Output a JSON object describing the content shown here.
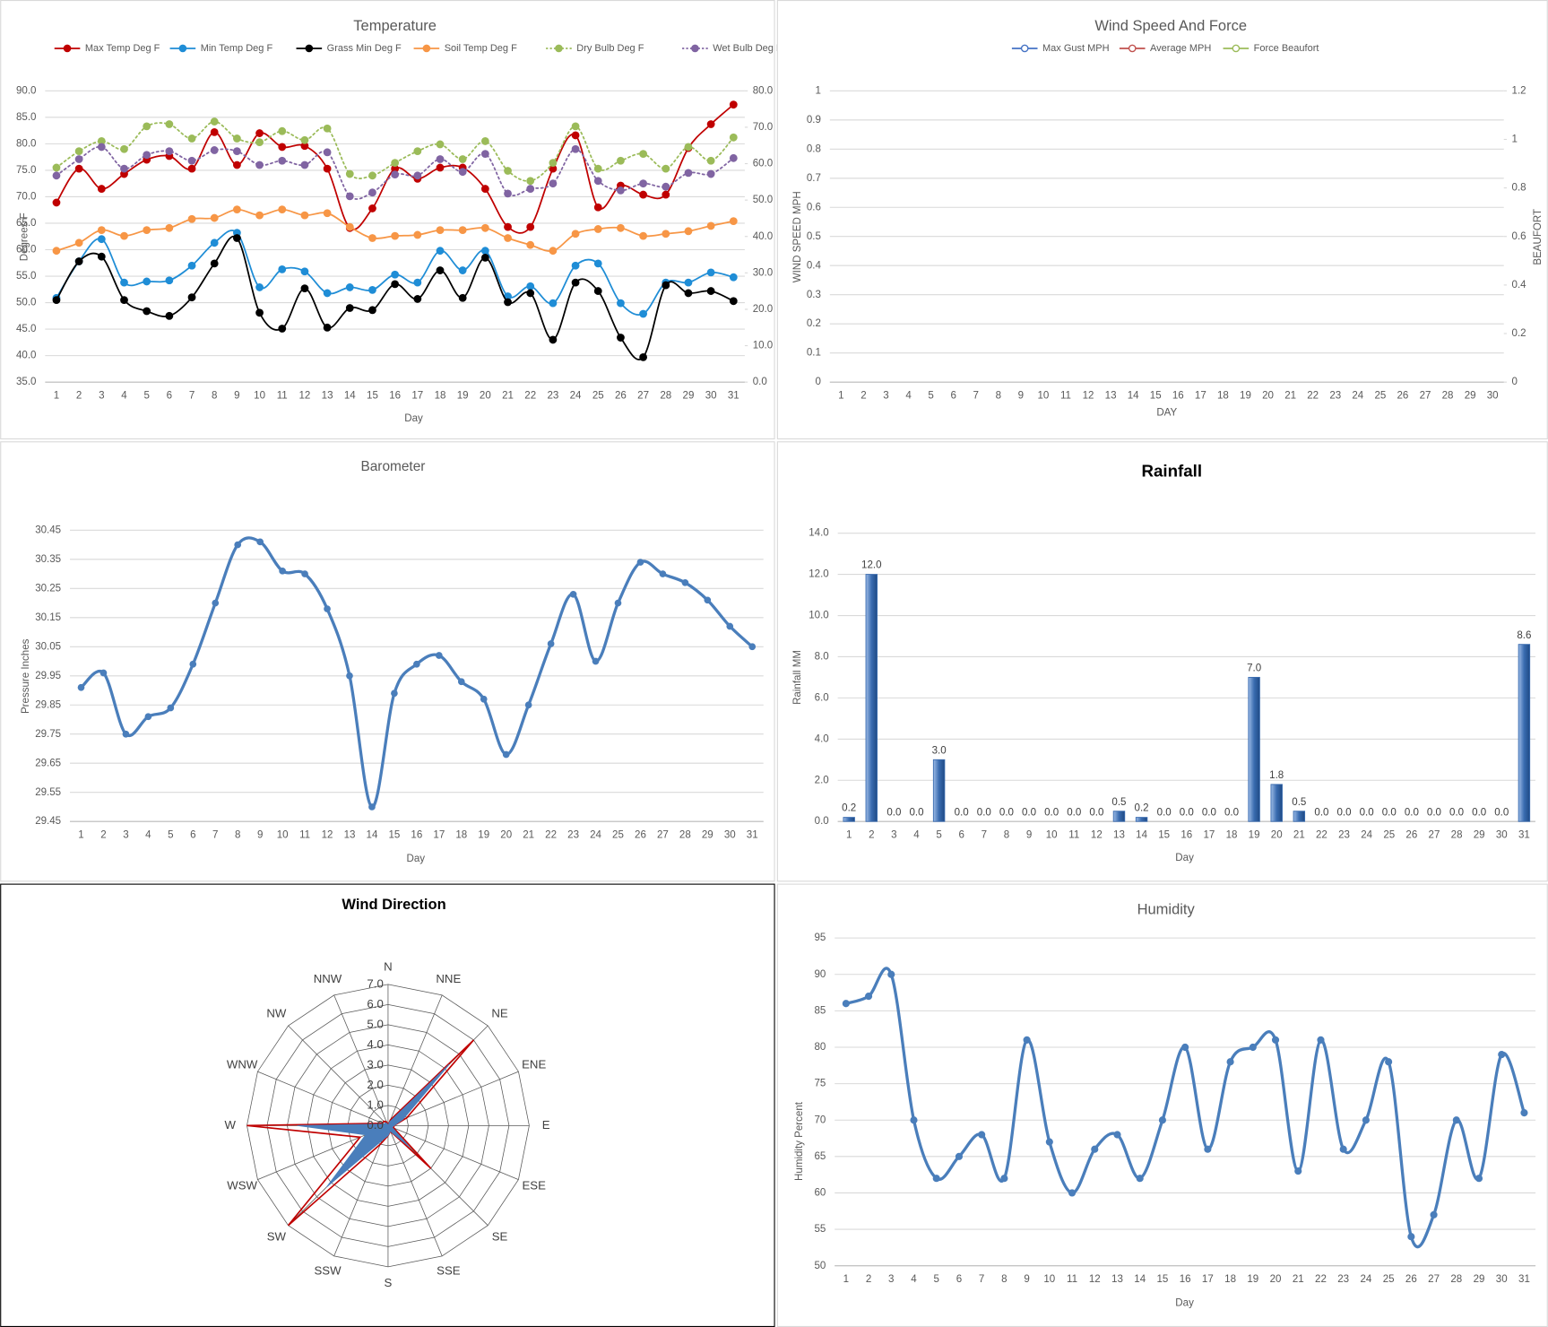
{
  "chart_data": [
    {
      "type": "line",
      "title": "Temperature",
      "xlabel": "Day",
      "ylabel": "Degrees F",
      "grid": true,
      "legend": "top",
      "marker_style": "filled",
      "categories": [
        1,
        2,
        3,
        4,
        5,
        6,
        7,
        8,
        9,
        10,
        11,
        12,
        13,
        14,
        15,
        16,
        17,
        18,
        19,
        20,
        21,
        22,
        23,
        24,
        25,
        26,
        27,
        28,
        29,
        30,
        31
      ],
      "ylim": [
        35,
        90
      ],
      "yticks": [
        {
          "value": 35,
          "label": "35.0"
        },
        {
          "value": 40,
          "label": "40.0"
        },
        {
          "value": 45,
          "label": "45.0"
        },
        {
          "value": 50,
          "label": "50.0"
        },
        {
          "value": 55,
          "label": "55.0"
        },
        {
          "value": 60,
          "label": "60.0"
        },
        {
          "value": 65,
          "label": "65.0"
        },
        {
          "value": 70,
          "label": "70.0"
        },
        {
          "value": 75,
          "label": "75.0"
        },
        {
          "value": 80,
          "label": "80.0"
        },
        {
          "value": 85,
          "label": "85.0"
        },
        {
          "value": 90,
          "label": "90.0"
        }
      ],
      "y2lim": [
        0,
        80
      ],
      "y2ticks": [
        {
          "value": 0,
          "label": "0.0"
        },
        {
          "value": 10,
          "label": "10.0"
        },
        {
          "value": 20,
          "label": "20.0"
        },
        {
          "value": 30,
          "label": "30.0"
        },
        {
          "value": 40,
          "label": "40.0"
        },
        {
          "value": 50,
          "label": "50.0"
        },
        {
          "value": 60,
          "label": "60.0"
        },
        {
          "value": 70,
          "label": "70.0"
        },
        {
          "value": 80,
          "label": "80.0"
        }
      ],
      "series": [
        {
          "name": "Max Temp Deg F",
          "color": "#c00000",
          "style": "solid",
          "values": [
            68.9,
            75.3,
            71.5,
            74.3,
            77,
            77.7,
            75.3,
            82.2,
            76,
            82,
            79.4,
            79.6,
            75.3,
            64.1,
            67.8,
            75.3,
            73.4,
            75.5,
            75.5,
            71.5,
            64.3,
            64.3,
            75.3,
            81.6,
            68,
            72.1,
            70.4,
            70.4,
            79.2,
            83.7,
            87.4
          ]
        },
        {
          "name": "Min Temp Deg F",
          "color": "#1f8dd6",
          "style": "solid",
          "values": [
            50.9,
            57.8,
            62,
            53.8,
            54,
            54.2,
            57,
            61.3,
            63.2,
            52.9,
            56.3,
            55.9,
            51.8,
            52.9,
            52.4,
            55.3,
            53.8,
            59.8,
            56.1,
            59.8,
            51.2,
            53.1,
            49.9,
            57,
            57.4,
            49.9,
            47.9,
            53.8,
            53.8,
            55.7,
            54.8
          ]
        },
        {
          "name": "Grass Min Deg F",
          "color": "#000000",
          "style": "solid",
          "values": [
            50.5,
            57.8,
            58.7,
            50.5,
            48.4,
            47.5,
            51,
            57.4,
            62.2,
            48.1,
            45.1,
            52.7,
            45.3,
            49,
            48.6,
            53.5,
            50.7,
            56.1,
            50.9,
            58.5,
            50.1,
            51.8,
            43,
            53.8,
            52.2,
            43.4,
            39.7,
            53.3,
            51.8,
            52.2,
            50.3
          ]
        },
        {
          "name": "Soil Temp Deg F",
          "color": "#f79646",
          "style": "solid",
          "values": [
            59.8,
            61.3,
            63.7,
            62.6,
            63.7,
            64.1,
            65.8,
            66,
            67.6,
            66.5,
            67.6,
            66.5,
            66.9,
            64.3,
            62.2,
            62.6,
            62.8,
            63.7,
            63.7,
            64.1,
            62.2,
            60.9,
            59.8,
            63,
            63.9,
            64.1,
            62.6,
            63,
            63.5,
            64.5,
            65.4
          ]
        },
        {
          "name": "Dry Bulb Deg F",
          "color": "#9bbb59",
          "style": "dotted",
          "values": [
            75.5,
            78.6,
            80.5,
            79,
            83.3,
            83.7,
            81,
            84.2,
            81,
            80.3,
            82.4,
            80.7,
            82.9,
            74.3,
            74,
            76.4,
            78.6,
            79.9,
            77.1,
            80.5,
            74.9,
            73,
            76.4,
            83.3,
            75.3,
            76.8,
            78.1,
            75.3,
            79.4,
            76.8,
            81.2
          ]
        },
        {
          "name": "Wet Bulb Deg F",
          "color": "#8064a2",
          "style": "dotted",
          "values": [
            74,
            77.1,
            79.4,
            75.3,
            77.9,
            78.6,
            76.8,
            78.8,
            78.6,
            76,
            76.8,
            76,
            78.4,
            70.1,
            70.8,
            74.2,
            74,
            77.1,
            74.7,
            78.1,
            70.6,
            71.5,
            72.5,
            79,
            73,
            71.2,
            72.5,
            71.9,
            74.5,
            74.3,
            77.3
          ]
        }
      ]
    },
    {
      "type": "line",
      "title": "Wind Speed And Force",
      "xlabel": "DAY",
      "ylabel": "WIND SPEED MPH",
      "y2label": "BEAUFORT",
      "grid": true,
      "legend": "top",
      "marker_style": "open",
      "categories": [
        1,
        2,
        3,
        4,
        5,
        6,
        7,
        8,
        9,
        10,
        11,
        12,
        13,
        14,
        15,
        16,
        17,
        18,
        19,
        20,
        21,
        22,
        23,
        24,
        25,
        26,
        27,
        28,
        29,
        30
      ],
      "ylim": [
        0,
        1
      ],
      "yticks": [
        0,
        0.1,
        0.2,
        0.3,
        0.4,
        0.5,
        0.6,
        0.7,
        0.8,
        0.9,
        1
      ],
      "y2lim": [
        0,
        1.2
      ],
      "y2ticks": [
        0,
        0.2,
        0.4,
        0.6,
        0.8,
        1,
        1.2
      ],
      "series": [
        {
          "name": "Max Gust MPH",
          "color": "#4472c4",
          "style": "solid"
        },
        {
          "name": "Average MPH",
          "color": "#c0504d",
          "style": "solid"
        },
        {
          "name": "Force Beaufort",
          "color": "#9bbb59",
          "style": "solid",
          "axis": "y2"
        }
      ]
    },
    {
      "type": "line",
      "title": "Barometer",
      "xlabel": "Day",
      "ylabel": "Pressure Inches",
      "grid": true,
      "marker_style": "filled",
      "categories": [
        1,
        2,
        3,
        4,
        5,
        6,
        7,
        8,
        9,
        10,
        11,
        12,
        13,
        14,
        15,
        16,
        17,
        18,
        19,
        20,
        21,
        22,
        23,
        24,
        25,
        26,
        27,
        28,
        29,
        30,
        31
      ],
      "ylim": [
        29.45,
        30.45
      ],
      "yticks": [
        29.45,
        29.55,
        29.65,
        29.75,
        29.85,
        29.95,
        30.05,
        30.15,
        30.25,
        30.35,
        30.45
      ],
      "series": [
        {
          "color": "#4a7ebb",
          "style": "solid",
          "values": [
            29.91,
            29.96,
            29.75,
            29.81,
            29.84,
            29.99,
            30.2,
            30.4,
            30.41,
            30.31,
            30.3,
            30.18,
            29.95,
            29.5,
            29.89,
            29.99,
            30.02,
            29.93,
            29.87,
            29.68,
            29.85,
            30.06,
            30.23,
            30,
            30.2,
            30.34,
            30.3,
            30.27,
            30.21,
            30.12,
            30.05
          ]
        }
      ]
    },
    {
      "type": "bar",
      "title": "Rainfall",
      "xlabel": "Day",
      "ylabel": "Rainfall MM",
      "grid": true,
      "color": "#3a6cb0",
      "categories": [
        1,
        2,
        3,
        4,
        5,
        6,
        7,
        8,
        9,
        10,
        11,
        12,
        13,
        14,
        15,
        16,
        17,
        18,
        19,
        20,
        21,
        22,
        23,
        24,
        25,
        26,
        27,
        28,
        29,
        30,
        31
      ],
      "ylim": [
        0,
        14
      ],
      "yticks": [
        {
          "value": 0,
          "label": "0.0"
        },
        {
          "value": 2,
          "label": "2.0"
        },
        {
          "value": 4,
          "label": "4.0"
        },
        {
          "value": 6,
          "label": "6.0"
        },
        {
          "value": 8,
          "label": "8.0"
        },
        {
          "value": 10,
          "label": "10.0"
        },
        {
          "value": 12,
          "label": "12.0"
        },
        {
          "value": 14,
          "label": "14.0"
        }
      ],
      "values": [
        0.2,
        12,
        0,
        0,
        3,
        0,
        0,
        0,
        0,
        0,
        0,
        0,
        0.5,
        0.2,
        0,
        0,
        0,
        0,
        7,
        1.8,
        0.5,
        0,
        0,
        0,
        0,
        0,
        0,
        0,
        0,
        0,
        8.6
      ],
      "value_labels": [
        "0.2",
        "12.0",
        "0.0",
        "0.0",
        "3.0",
        "0.0",
        "0.0",
        "0.0",
        "0.0",
        "0.0",
        "0.0",
        "0.0",
        "0.5",
        "0.2",
        "0.0",
        "0.0",
        "0.0",
        "0.0",
        "7.0",
        "1.8",
        "0.5",
        "0.0",
        "0.0",
        "0.0",
        "0.0",
        "0.0",
        "0.0",
        "0.0",
        "0.0",
        "0.0",
        "8.6"
      ]
    },
    {
      "type": "radar",
      "title": "Wind Direction",
      "categories": [
        "N",
        "NNE",
        "NE",
        "ENE",
        "E",
        "ESE",
        "SE",
        "SSE",
        "S",
        "SSW",
        "SW",
        "WSW",
        "W",
        "WNW",
        "NW",
        "NNW"
      ],
      "rlim": [
        0,
        7
      ],
      "rticks": [
        {
          "value": 0,
          "label": "0.0"
        },
        {
          "value": 1,
          "label": "1.0"
        },
        {
          "value": 2,
          "label": "2.0"
        },
        {
          "value": 3,
          "label": "3.0"
        },
        {
          "value": 4,
          "label": "4.0"
        },
        {
          "value": 5,
          "label": "5.0"
        },
        {
          "value": 6,
          "label": "6.0"
        },
        {
          "value": 7,
          "label": "7.0"
        }
      ],
      "series": [
        {
          "color": "#c00000",
          "filled": false,
          "values": [
            0,
            0.3,
            6,
            1,
            0.3,
            0.3,
            3,
            0.3,
            0.5,
            1,
            7,
            1.5,
            7,
            0.3,
            0.3,
            0.2
          ]
        },
        {
          "color": "#4a7ebb",
          "filled": true,
          "values": [
            0,
            0.2,
            4.3,
            0.8,
            0.3,
            0.2,
            1.5,
            0.3,
            0.5,
            0.8,
            4.3,
            1.2,
            4.5,
            0.2,
            0.2,
            0.1
          ]
        }
      ]
    },
    {
      "type": "line",
      "title": "Humidity",
      "xlabel": "Day",
      "ylabel": "Humidity Percent",
      "grid": true,
      "marker_style": "filled",
      "categories": [
        1,
        2,
        3,
        4,
        5,
        6,
        7,
        8,
        9,
        10,
        11,
        12,
        13,
        14,
        15,
        16,
        17,
        18,
        19,
        20,
        21,
        22,
        23,
        24,
        25,
        26,
        27,
        28,
        29,
        30,
        31
      ],
      "ylim": [
        50,
        95
      ],
      "yticks": [
        50,
        55,
        60,
        65,
        70,
        75,
        80,
        85,
        90,
        95
      ],
      "series": [
        {
          "color": "#4a7ebb",
          "style": "solid",
          "values": [
            86,
            87,
            90,
            70,
            62,
            65,
            68,
            62,
            81,
            67,
            60,
            66,
            68,
            62,
            70,
            80,
            66,
            78,
            80,
            81,
            63,
            81,
            66,
            70,
            78,
            54,
            57,
            70,
            62,
            79,
            71
          ]
        }
      ]
    }
  ]
}
